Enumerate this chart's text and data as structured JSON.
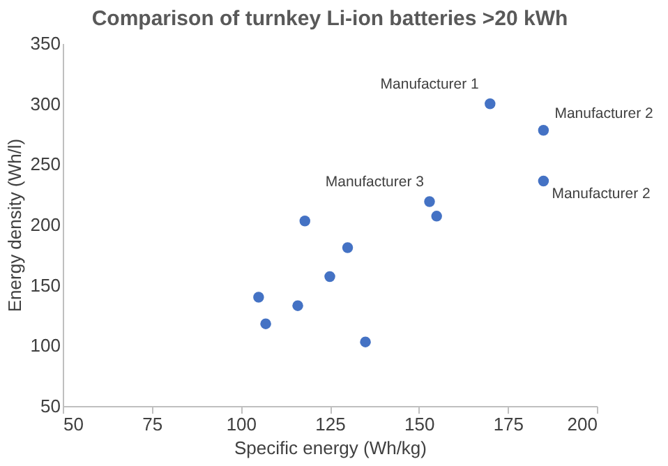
{
  "chart_data": {
    "type": "scatter",
    "title": "Comparison of turnkey Li-ion batteries >20 kWh",
    "xlabel": "Specific energy (Wh/kg)",
    "ylabel": "Energy density (Wh/l)",
    "x": [
      170,
      185,
      185,
      153,
      155,
      118,
      130,
      125,
      105,
      116,
      107,
      135
    ],
    "series": [
      {
        "color": "#4472c4",
        "values": [
          300,
          278,
          236,
          219,
          207,
          203,
          181,
          157,
          140,
          133,
          118,
          103
        ]
      }
    ],
    "xlim": [
      50,
      200
    ],
    "xticks": [
      50,
      75,
      100,
      125,
      150,
      175,
      200
    ],
    "ylim": [
      50,
      350
    ],
    "yticks": [
      50,
      100,
      150,
      200,
      250,
      300,
      350
    ],
    "grid": false,
    "marker": "circle",
    "annotations": [
      {
        "text": "Manufacturer 1",
        "x": 170,
        "y": 300
      },
      {
        "text": "Manufacturer 2",
        "x": 185,
        "y": 278
      },
      {
        "text": "Manufacturer 3",
        "x": 153,
        "y": 219
      },
      {
        "text": "Manufacturer 2",
        "x": 185,
        "y": 236
      }
    ]
  }
}
